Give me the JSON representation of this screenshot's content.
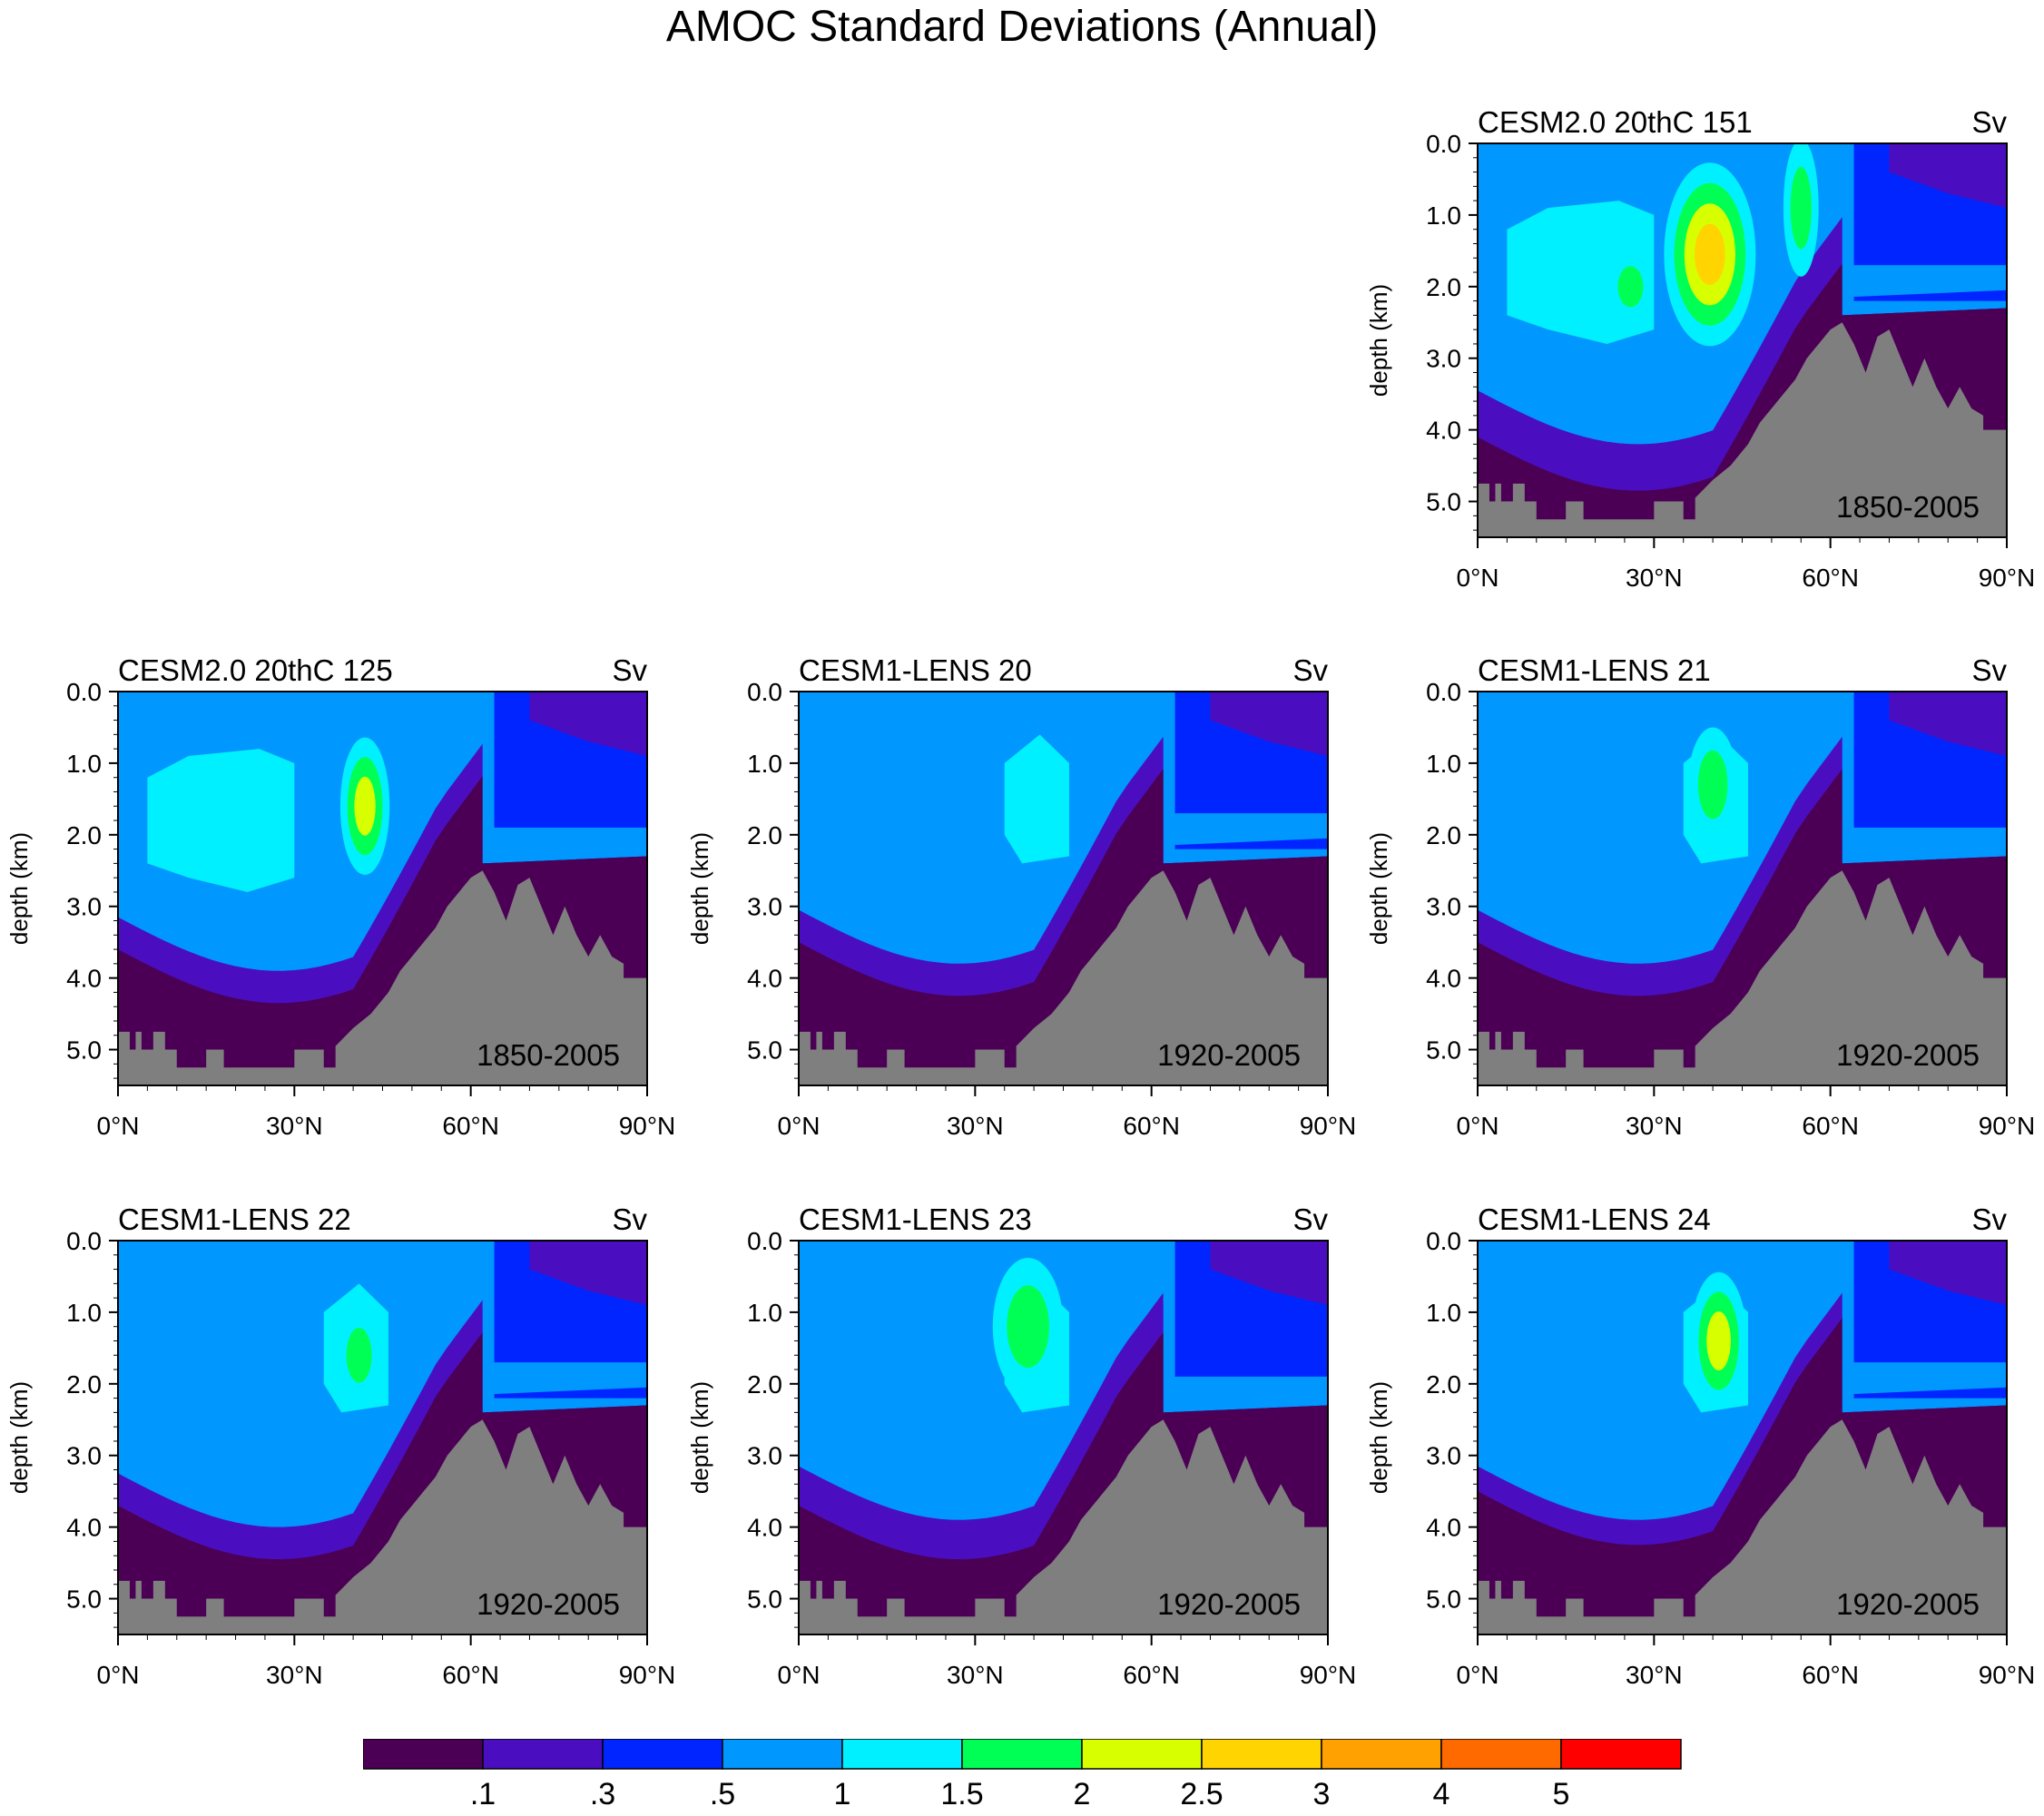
{
  "title": "AMOC Standard Deviations (Annual)",
  "units": "Sv",
  "y_axis_label": "depth (km)",
  "y_ticks": [
    "0.0",
    "1.0",
    "2.0",
    "3.0",
    "4.0",
    "5.0"
  ],
  "x_ticks": [
    "0°N",
    "30°N",
    "60°N",
    "90°N"
  ],
  "colorbar": {
    "colors": [
      "#4b0055",
      "#4a0ec0",
      "#0025ff",
      "#0097ff",
      "#00f0ff",
      "#00ff55",
      "#d8ff00",
      "#ffd400",
      "#ffa100",
      "#ff6a00",
      "#ff0000"
    ],
    "labels": [
      ".1",
      ".3",
      ".5",
      "1",
      "1.5",
      "2",
      "2.5",
      "3",
      "4",
      "5"
    ]
  },
  "chart_data": [
    {
      "type": "heatmap",
      "title": "CESM2.0 20thC 151",
      "units": "Sv",
      "period": "1850-2005",
      "ylabel": "depth (km)",
      "xlim": [
        0,
        90
      ],
      "ylim": [
        5.5,
        0
      ],
      "variant": "cesm2",
      "shelf_top": 1.7,
      "deep_top": 3.5,
      "mid_top": 3.9,
      "light_bottom": 4.25,
      "bottom_min": 5.2,
      "cores": [
        {
          "lat": 39.5,
          "dep": 1.55,
          "w": 2.6,
          "h": 0.8,
          "level": 7
        },
        {
          "lat": 26,
          "dep": 2.0,
          "w": 1.2,
          "h": 0.3,
          "level": 5
        },
        {
          "lat": 55,
          "dep": 0.9,
          "w": 1.0,
          "h": 0.6,
          "level": 5
        }
      ]
    },
    {
      "type": "heatmap",
      "title": "CESM2.0 20thC 125",
      "units": "Sv",
      "period": "1850-2005",
      "ylabel": "depth (km)",
      "xlim": [
        0,
        90
      ],
      "ylim": [
        5.5,
        0
      ],
      "variant": "cesm2",
      "shelf_top": 1.9,
      "deep_top": 3.0,
      "mid_top": 3.6,
      "light_bottom": 3.95,
      "bottom_min": 5.2,
      "cores": [
        {
          "lat": 42,
          "dep": 1.6,
          "w": 1.4,
          "h": 0.6,
          "level": 6
        }
      ]
    },
    {
      "type": "heatmap",
      "title": "CESM1-LENS 20",
      "units": "Sv",
      "period": "1920-2005",
      "ylabel": "depth (km)",
      "xlim": [
        0,
        90
      ],
      "ylim": [
        5.5,
        0
      ],
      "variant": "lens",
      "shelf_top": 1.7,
      "deep_top": 2.9,
      "mid_top": 3.5,
      "light_bottom": 3.85,
      "bottom_min": 5.2,
      "cores": []
    },
    {
      "type": "heatmap",
      "title": "CESM1-LENS 21",
      "units": "Sv",
      "period": "1920-2005",
      "ylabel": "depth (km)",
      "xlim": [
        0,
        90
      ],
      "ylim": [
        5.5,
        0
      ],
      "variant": "lens",
      "shelf_top": 1.9,
      "deep_top": 2.9,
      "mid_top": 3.5,
      "light_bottom": 3.85,
      "bottom_min": 5.2,
      "cores": [
        {
          "lat": 40,
          "dep": 1.3,
          "w": 1.4,
          "h": 0.5,
          "level": 5
        }
      ]
    },
    {
      "type": "heatmap",
      "title": "CESM1-LENS 22",
      "units": "Sv",
      "period": "1920-2005",
      "ylabel": "depth (km)",
      "xlim": [
        0,
        90
      ],
      "ylim": [
        5.5,
        0
      ],
      "variant": "lens",
      "shelf_top": 1.7,
      "deep_top": 3.1,
      "mid_top": 3.7,
      "light_bottom": 4.1,
      "bottom_min": 5.2,
      "cores": [
        {
          "lat": 41,
          "dep": 1.6,
          "w": 1.2,
          "h": 0.4,
          "level": 5
        }
      ]
    },
    {
      "type": "heatmap",
      "title": "CESM1-LENS 23",
      "units": "Sv",
      "period": "1920-2005",
      "ylabel": "depth (km)",
      "xlim": [
        0,
        90
      ],
      "ylim": [
        5.5,
        0
      ],
      "variant": "lens",
      "shelf_top": 1.9,
      "deep_top": 3.1,
      "mid_top": 3.6,
      "light_bottom": 4.05,
      "bottom_min": 5.2,
      "cores": [
        {
          "lat": 39,
          "dep": 1.2,
          "w": 2.0,
          "h": 0.6,
          "level": 5
        }
      ]
    },
    {
      "type": "heatmap",
      "title": "CESM1-LENS 24",
      "units": "Sv",
      "period": "1920-2005",
      "ylabel": "depth (km)",
      "xlim": [
        0,
        90
      ],
      "ylim": [
        5.5,
        0
      ],
      "variant": "lens",
      "shelf_top": 1.7,
      "deep_top": 2.9,
      "mid_top": 3.6,
      "light_bottom": 3.95,
      "bottom_min": 5.2,
      "cores": [
        {
          "lat": 41,
          "dep": 1.4,
          "w": 1.6,
          "h": 0.6,
          "level": 6
        }
      ]
    }
  ]
}
